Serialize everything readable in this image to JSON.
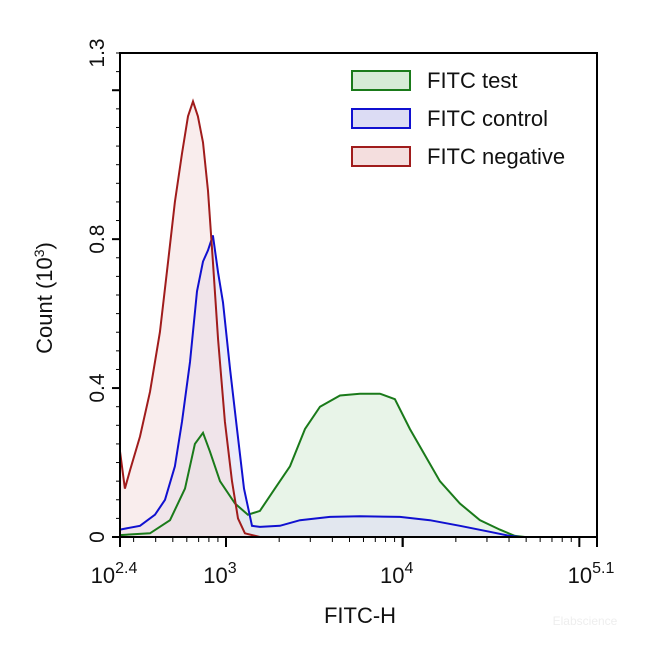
{
  "chart_data": {
    "type": "area",
    "title": "",
    "xlabel": "FITC-H",
    "ylabel": "Count",
    "ylabel_unit_base": "10",
    "ylabel_unit_exp": "3",
    "x_scale": "log10",
    "xlim_log10": [
      2.4,
      5.1
    ],
    "ylim": [
      0,
      1.3
    ],
    "x_ticks": [
      {
        "base": "10",
        "exp": "2.4",
        "value_log10": 2.4
      },
      {
        "base": "10",
        "exp": "3",
        "value_log10": 3
      },
      {
        "base": "10",
        "exp": "4",
        "value_log10": 4
      },
      {
        "base": "10",
        "exp": "5.1",
        "value_log10": 5.1
      }
    ],
    "y_ticks": [
      {
        "label": "0",
        "value": 0
      },
      {
        "label": "0.4",
        "value": 0.4
      },
      {
        "label": "0.8",
        "value": 0.8
      },
      {
        "label": "1.3",
        "value": 1.3
      }
    ],
    "legend_position": "top-right",
    "grid": false,
    "series": [
      {
        "name": "FITC test",
        "color": "#1a7a1a",
        "fill": "#d6ebd6",
        "x_log10": [
          2.4,
          2.57,
          2.683,
          2.768,
          2.824,
          2.87,
          2.909,
          2.966,
          3.051,
          3.124,
          3.192,
          3.277,
          3.362,
          3.447,
          3.532,
          3.645,
          3.758,
          3.871,
          3.956,
          4.041,
          4.126,
          4.211,
          4.324,
          4.437,
          4.55,
          4.635,
          4.692
        ],
        "counts": [
          0.005,
          0.01,
          0.045,
          0.13,
          0.25,
          0.28,
          0.23,
          0.15,
          0.09,
          0.06,
          0.07,
          0.13,
          0.19,
          0.29,
          0.35,
          0.38,
          0.385,
          0.385,
          0.37,
          0.29,
          0.22,
          0.15,
          0.09,
          0.045,
          0.02,
          0.003,
          0
        ]
      },
      {
        "name": "FITC control",
        "color": "#1010d0",
        "fill": "#dcdcf4",
        "x_log10": [
          2.4,
          2.513,
          2.598,
          2.655,
          2.711,
          2.751,
          2.796,
          2.836,
          2.87,
          2.898,
          2.926,
          2.955,
          2.983,
          3.023,
          3.062,
          3.102,
          3.147,
          3.192,
          3.305,
          3.419,
          3.588,
          3.758,
          3.985,
          4.154,
          4.324,
          4.494,
          4.607,
          4.664
        ],
        "counts": [
          0.02,
          0.03,
          0.06,
          0.1,
          0.19,
          0.31,
          0.47,
          0.66,
          0.74,
          0.77,
          0.81,
          0.71,
          0.63,
          0.45,
          0.29,
          0.13,
          0.03,
          0.027,
          0.03,
          0.045,
          0.054,
          0.056,
          0.054,
          0.045,
          0.03,
          0.014,
          0.003,
          0
        ]
      },
      {
        "name": "FITC negative",
        "color": "#a01c1c",
        "fill": "#f4dede",
        "x_log10": [
          2.4,
          2.428,
          2.457,
          2.513,
          2.57,
          2.626,
          2.672,
          2.711,
          2.751,
          2.785,
          2.813,
          2.841,
          2.87,
          2.898,
          2.926,
          2.955,
          2.994,
          3.034,
          3.068,
          3.107,
          3.192
        ],
        "counts": [
          0.23,
          0.13,
          0.18,
          0.27,
          0.39,
          0.55,
          0.74,
          0.9,
          1.03,
          1.13,
          1.17,
          1.13,
          1.06,
          0.93,
          0.74,
          0.53,
          0.31,
          0.15,
          0.05,
          0.01,
          0
        ]
      }
    ]
  },
  "watermark": "Elabscience"
}
